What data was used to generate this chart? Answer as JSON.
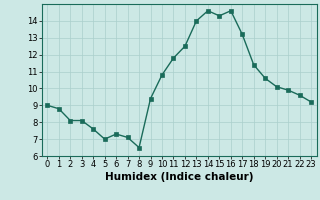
{
  "x": [
    0,
    1,
    2,
    3,
    4,
    5,
    6,
    7,
    8,
    9,
    10,
    11,
    12,
    13,
    14,
    15,
    16,
    17,
    18,
    19,
    20,
    21,
    22,
    23
  ],
  "y": [
    9.0,
    8.8,
    8.1,
    8.1,
    7.6,
    7.0,
    7.3,
    7.1,
    6.5,
    9.4,
    10.8,
    11.8,
    12.5,
    14.0,
    14.6,
    14.3,
    14.6,
    13.2,
    11.4,
    10.6,
    10.1,
    9.9,
    9.6,
    9.2
  ],
  "line_color": "#1a6b5a",
  "marker": "s",
  "markersize": 2.5,
  "linewidth": 1.0,
  "xlabel": "Humidex (Indice chaleur)",
  "xlim": [
    -0.5,
    23.5
  ],
  "ylim": [
    6,
    15
  ],
  "yticks": [
    6,
    7,
    8,
    9,
    10,
    11,
    12,
    13,
    14
  ],
  "xticks": [
    0,
    1,
    2,
    3,
    4,
    5,
    6,
    7,
    8,
    9,
    10,
    11,
    12,
    13,
    14,
    15,
    16,
    17,
    18,
    19,
    20,
    21,
    22,
    23
  ],
  "bg_color": "#cce8e5",
  "grid_color": "#aacfcc",
  "tick_label_fontsize": 6.0,
  "xlabel_fontsize": 7.5,
  "xlabel_fontweight": "bold"
}
